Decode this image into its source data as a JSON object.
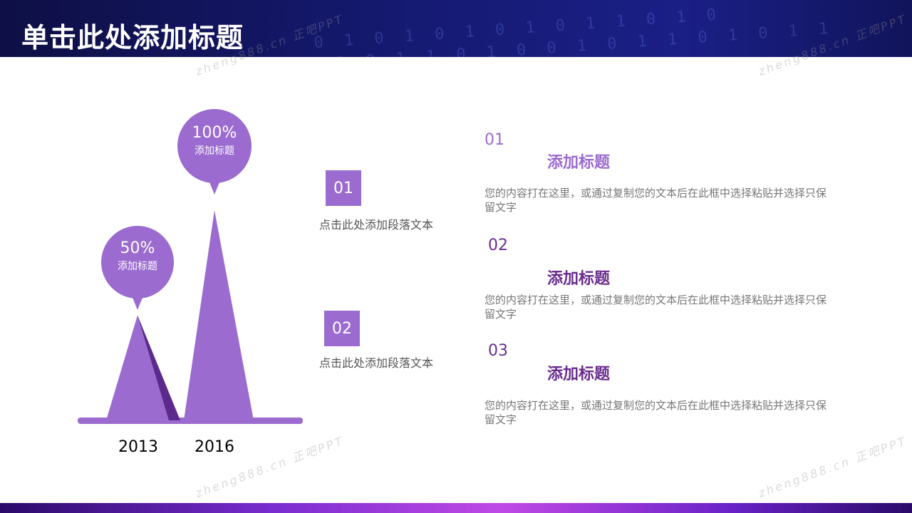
{
  "slide": {
    "title": "单击此处添加标题"
  },
  "header": {
    "binary_lines": [
      "0 1 0 1 0 1 0 1 0 1 1 0 1 0",
      "1 0 1 1 0 1 0 0 1 0 1 1 0 1 0 1 1"
    ]
  },
  "watermarks": [
    "zheng888.cn 正吧PPT",
    "zheng888.cn 正吧PPT",
    "zheng888.cn 正吧PPT",
    "zheng888.cn 正吧PPT"
  ],
  "chart_data": {
    "type": "bar",
    "categories": [
      "2013",
      "2016"
    ],
    "values": [
      50,
      100
    ],
    "callouts": [
      {
        "value": "50%",
        "label": "添加标题"
      },
      {
        "value": "100%",
        "label": "添加标题"
      }
    ],
    "ylim": [
      0,
      100
    ]
  },
  "middle": [
    {
      "number": "01",
      "text": "点击此处添加段落文本"
    },
    {
      "number": "02",
      "text": "点击此处添加段落文本"
    }
  ],
  "items": [
    {
      "number": "01",
      "title": "添加标题",
      "body": "您的内容打在这里，或通过复制您的文本后在此框中选择粘贴并选择只保留文字"
    },
    {
      "number": "02",
      "title": "添加标题",
      "body": "您的内容打在这里，或通过复制您的文本后在此框中选择粘贴并选择只保留文字"
    },
    {
      "number": "03",
      "title": "添加标题",
      "body": "您的内容打在这里，或通过复制您的文本后在此框中选择粘贴并选择只保留文字"
    }
  ],
  "colors": {
    "accent": "#9b6bcf",
    "accent_dark": "#5b2a8c",
    "item1": "#9b6bcf",
    "item_dark": "#6a2c8e"
  }
}
